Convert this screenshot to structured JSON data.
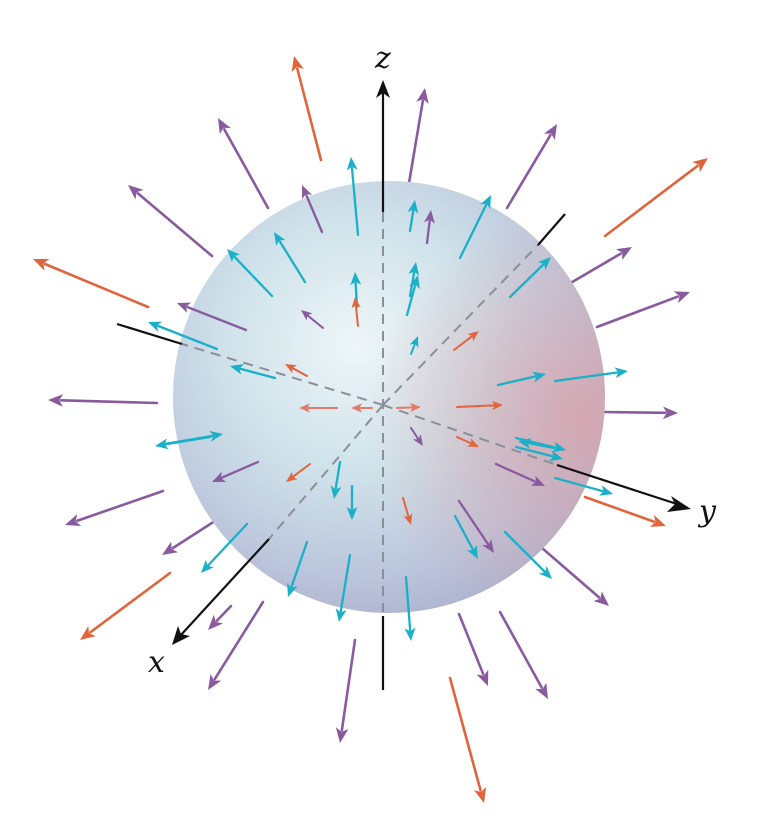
{
  "figure": {
    "axis_labels": {
      "x": "x",
      "y": "y",
      "z": "z"
    },
    "colors": {
      "axis": "#111111",
      "hidden_axis": "#8a8f98",
      "outer_field": "#8a5a9e",
      "surface_field": "#1ab0c8",
      "strong_field": "#e0643c",
      "inner_field": "#e27a6a",
      "sphere_highlight": "#eaf4f7",
      "sphere_mid": "#c9dce6",
      "sphere_shadow": "#b4b8d2",
      "sphere_warm": "#d9a8b0"
    }
  }
}
